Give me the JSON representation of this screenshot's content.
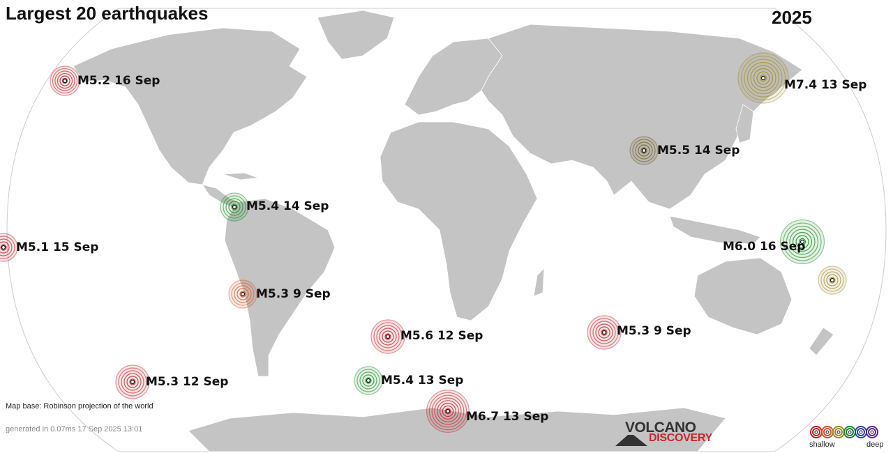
{
  "header": {
    "title": "Largest 20 earthquakes",
    "year": "2025"
  },
  "quakes": [
    {
      "label": "M5.2 16 Sep",
      "color": "#c0242a",
      "rings": 6
    },
    {
      "label": "M7.4 13 Sep",
      "color": "#a08a30",
      "rings": 8
    },
    {
      "label": "M5.5 14 Sep",
      "color": "#6d5a20",
      "rings": 5
    },
    {
      "label": "M5.4 14 Sep",
      "color": "#1c8a25",
      "rings": 5
    },
    {
      "label": "M5.1 15 Sep",
      "color": "#c0242a",
      "rings": 5
    },
    {
      "label": "M6.0 16 Sep",
      "color": "#1c8a25",
      "rings": 7
    },
    {
      "label": "",
      "color": "#a08a30",
      "rings": 5
    },
    {
      "label": "M5.3  9 Sep",
      "color": "#d0562a",
      "rings": 5
    },
    {
      "label": "M5.6 12 Sep",
      "color": "#c0242a",
      "rings": 6
    },
    {
      "label": "M5.3  9 Sep",
      "color": "#c0242a",
      "rings": 6
    },
    {
      "label": "M5.3 12 Sep",
      "color": "#c0242a",
      "rings": 6
    },
    {
      "label": "M5.4 13 Sep",
      "color": "#1c8a25",
      "rings": 5
    },
    {
      "label": "M6.7 13 Sep",
      "color": "#c0242a",
      "rings": 8
    }
  ],
  "footer": {
    "map_base": "Map base: Robinson projection of the world",
    "generated": "generated in 0.07ms 17 Sep 2025 13:01"
  },
  "logo": {
    "line1": "VOLCANO",
    "line2": "DISCOVERY"
  },
  "legend": {
    "shallow_label": "shallow",
    "deep_label": "deep",
    "depth_colors": [
      "#c0242a",
      "#d0562a",
      "#a08a30",
      "#1c8a25",
      "#2a4aa0",
      "#5a2a90"
    ]
  },
  "colors": {
    "land": "#c4c4c4",
    "ocean": "#ffffff",
    "border": "#ffffff",
    "outline": "#cccccc"
  }
}
